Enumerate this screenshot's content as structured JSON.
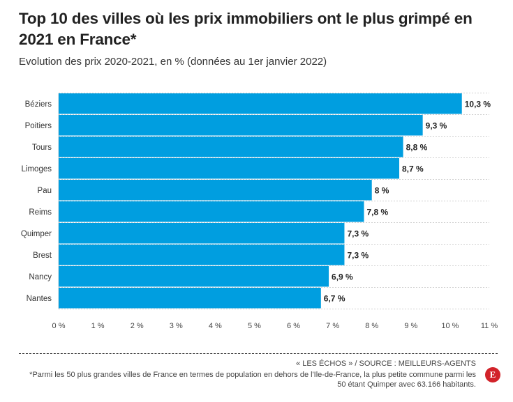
{
  "header": {
    "title": "Top 10 des villes où les prix immobiliers ont le plus grimpé en 2021 en France*",
    "subtitle": "Evolution des prix 2020-2021, en % (données au 1er janvier 2022)"
  },
  "chart_data": {
    "type": "bar",
    "orientation": "horizontal",
    "categories": [
      "Béziers",
      "Poitiers",
      "Tours",
      "Limoges",
      "Pau",
      "Reims",
      "Quimper",
      "Brest",
      "Nancy",
      "Nantes"
    ],
    "values": [
      10.3,
      9.3,
      8.8,
      8.7,
      8.0,
      7.8,
      7.3,
      7.3,
      6.9,
      6.7
    ],
    "value_labels": [
      "10,3 %",
      "9,3 %",
      "8,8 %",
      "8,7 %",
      "8 %",
      "7,8 %",
      "7,3 %",
      "7,3 %",
      "6,9 %",
      "6,7 %"
    ],
    "title": "Top 10 des villes où les prix immobiliers ont le plus grimpé en 2021 en France*",
    "subtitle": "Evolution des prix 2020-2021, en % (données au 1er janvier 2022)",
    "xlim": [
      0,
      11
    ],
    "ticks": [
      0,
      1,
      2,
      3,
      4,
      5,
      6,
      7,
      8,
      9,
      10,
      11
    ],
    "tick_labels": [
      "0 %",
      "1 %",
      "2 %",
      "3 %",
      "4 %",
      "5 %",
      "6 %",
      "7 %",
      "8 %",
      "9 %",
      "10 %",
      "11 %"
    ],
    "grid": true,
    "bar_color": "#009ee0"
  },
  "footer": {
    "source": "« LES ÉCHOS » / SOURCE : MEILLEURS-AGENTS",
    "footnote": "*Parmi les 50 plus grandes villes de France en termes de population en dehors de l'Ile-de-France, la plus petite commune parmi les 50 étant Quimper avec 63.166 habitants.",
    "logo_letter": "E",
    "logo_color": "#d2232a"
  }
}
